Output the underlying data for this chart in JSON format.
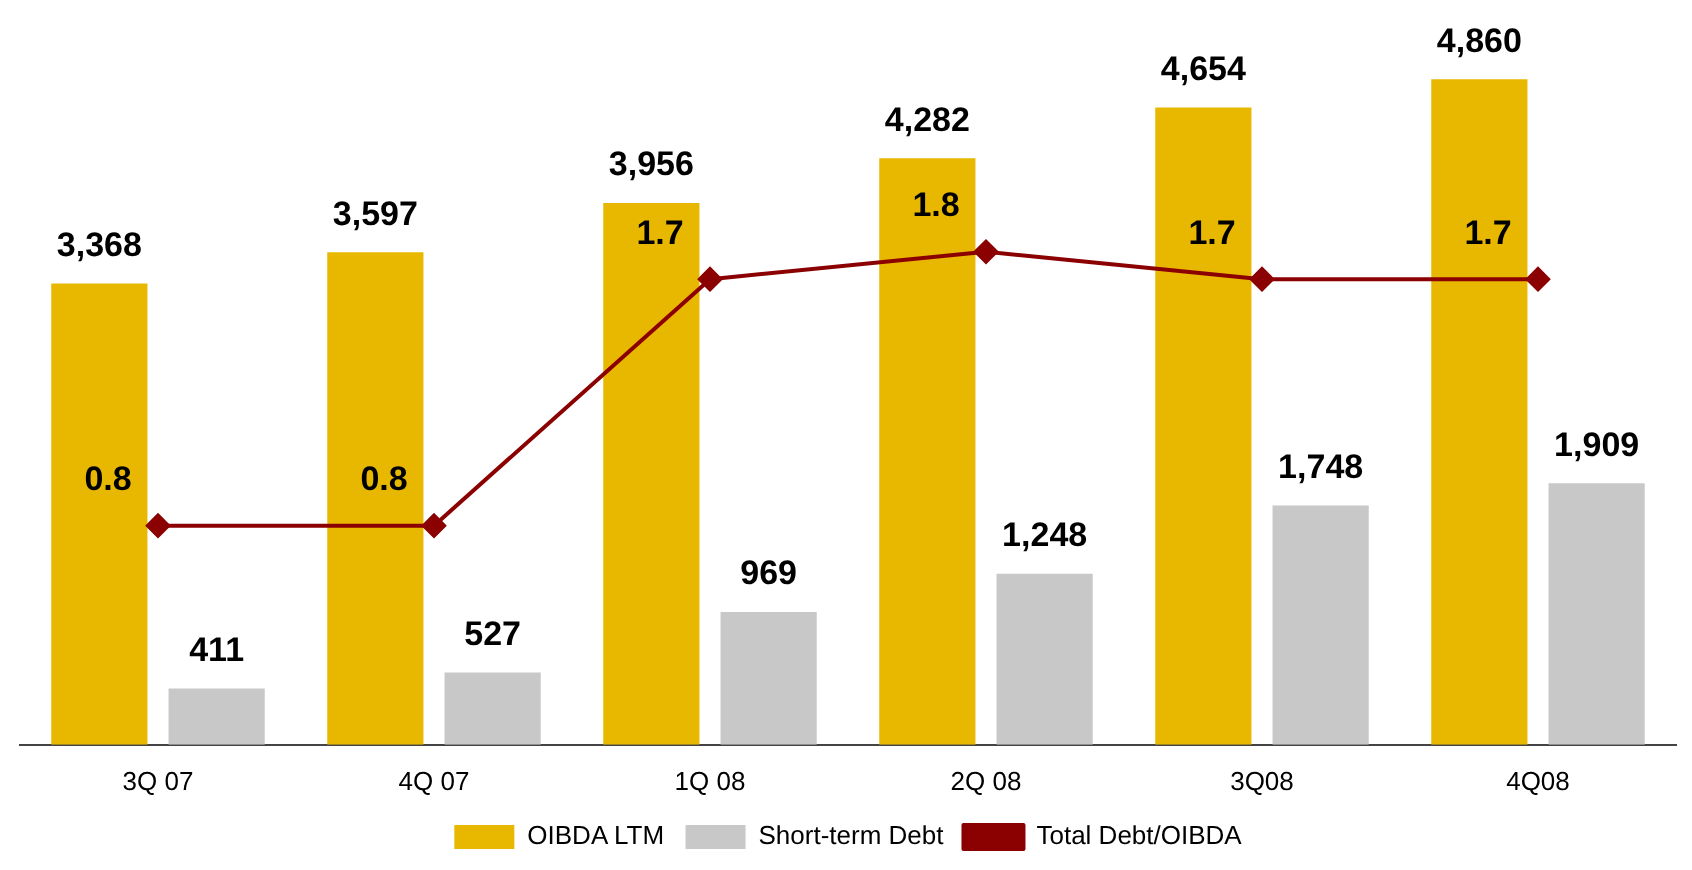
{
  "chart_data": {
    "type": "bar",
    "categories": [
      "3Q 07",
      "4Q 07",
      "1Q 08",
      "2Q 08",
      "3Q08",
      "4Q08"
    ],
    "series": [
      {
        "name": "OIBDA LTM",
        "color": "#e8b800",
        "values": [
          3368,
          3597,
          3956,
          4282,
          4654,
          4860
        ],
        "value_labels": [
          "3,368",
          "3,597",
          "3,956",
          "4,282",
          "4,654",
          "4,860"
        ]
      },
      {
        "name": "Short-term Debt",
        "color": "#c8c8c8",
        "values": [
          411,
          527,
          969,
          1248,
          1748,
          1909
        ],
        "value_labels": [
          "411",
          "527",
          "969",
          "1,248",
          "1,748",
          "1,909"
        ]
      },
      {
        "name": "Total Debt/OIBDA",
        "type": "line",
        "axis": "y2",
        "color": "#8b0000",
        "values": [
          0.8,
          0.8,
          1.7,
          1.8,
          1.7,
          1.7
        ],
        "value_labels": [
          "0.8",
          "0.8",
          "1.7",
          "1.8",
          "1.7",
          "1.7"
        ]
      }
    ],
    "legend": "bottom",
    "marker": "diamond",
    "line_style": "solid",
    "tick_labels": "x"
  }
}
